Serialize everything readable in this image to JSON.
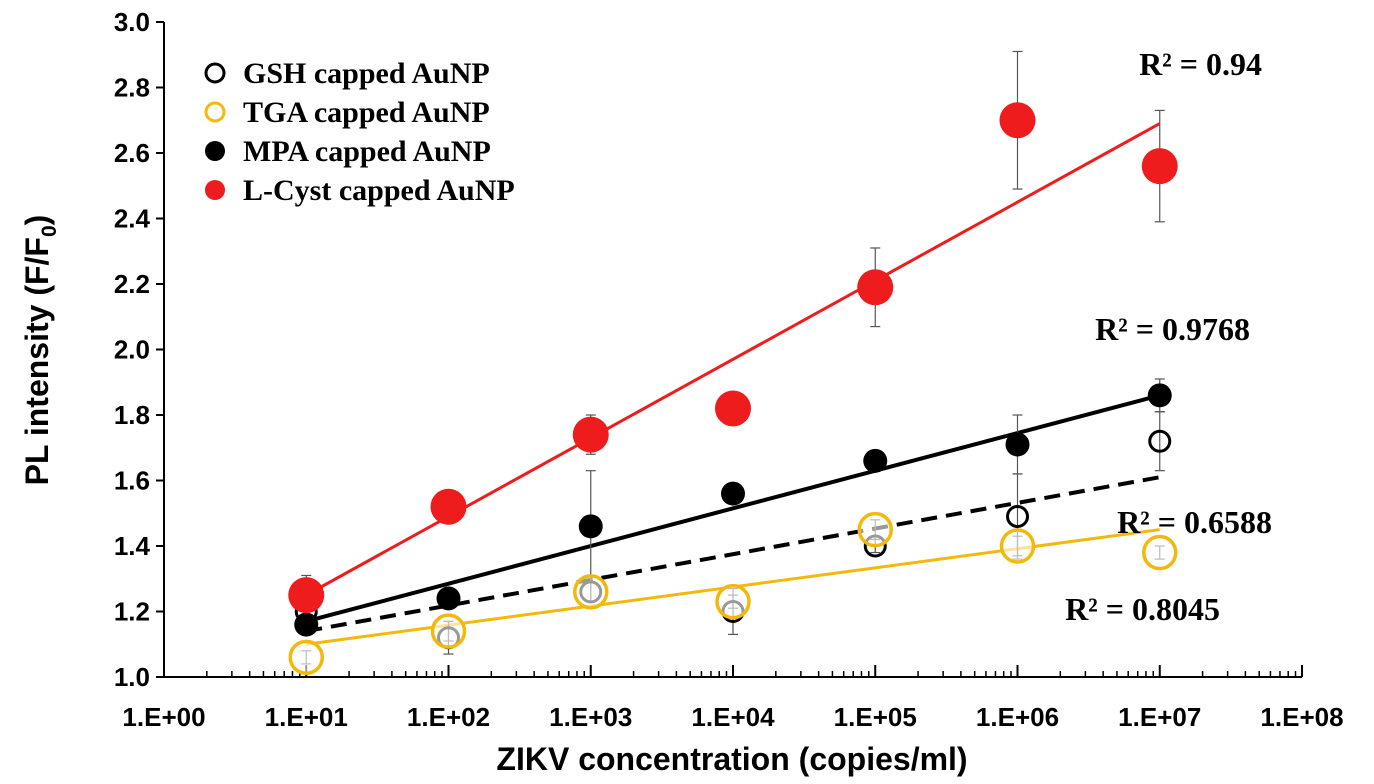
{
  "chart_data": {
    "type": "scatter",
    "x_scale": "log",
    "x_ticks": [
      "1.E+00",
      "1.E+01",
      "1.E+02",
      "1.E+03",
      "1.E+04",
      "1.E+05",
      "1.E+06",
      "1.E+07",
      "1.E+08"
    ],
    "xlim": [
      1,
      100000000
    ],
    "y_ticks": [
      "1.0",
      "1.2",
      "1.4",
      "1.6",
      "1.8",
      "2.0",
      "2.2",
      "2.4",
      "2.6",
      "2.8",
      "3.0"
    ],
    "ylim": [
      1.0,
      3.0
    ],
    "xlabel": "ZIKV concentration (copies/ml)",
    "ylabel": "PL intensity (F/F",
    "ylabel_sub": "0",
    "ylabel_end": ")",
    "grid": false,
    "legend_position": "top-left",
    "series": [
      {
        "name": "GSH capped AuNP",
        "marker": "open-circle",
        "color": "#000000",
        "x": [
          10,
          100,
          1000,
          10000,
          100000,
          1000000,
          10000000
        ],
        "y": [
          1.2,
          1.12,
          1.26,
          1.2,
          1.4,
          1.49,
          1.72
        ],
        "err": [
          0.03,
          0.05,
          0.03,
          0.07,
          0.02,
          0.13,
          0.09
        ],
        "trend": {
          "style": "dashed",
          "y_start": 1.14,
          "y_end": 1.61
        },
        "r2": "R² = 0.6588"
      },
      {
        "name": "TGA capped AuNP",
        "marker": "open-circle",
        "color": "#f2b90c",
        "x": [
          10,
          100,
          1000,
          10000,
          100000,
          1000000,
          10000000
        ],
        "y": [
          1.06,
          1.14,
          1.26,
          1.23,
          1.45,
          1.4,
          1.38
        ],
        "err": [
          0.02,
          0.03,
          0.03,
          0.02,
          0.03,
          0.03,
          0.02
        ],
        "trend": {
          "style": "solid",
          "y_start": 1.1,
          "y_end": 1.45
        },
        "r2": "R² = 0.8045"
      },
      {
        "name": "MPA capped AuNP",
        "marker": "filled-circle",
        "color": "#000000",
        "x": [
          10,
          100,
          1000,
          10000,
          100000,
          1000000,
          10000000
        ],
        "y": [
          1.16,
          1.24,
          1.46,
          1.56,
          1.66,
          1.71,
          1.86
        ],
        "err": [
          0.03,
          0.03,
          0.17,
          0.03,
          0.03,
          0.09,
          0.05
        ],
        "trend": {
          "style": "solid",
          "y_start": 1.17,
          "y_end": 1.86
        },
        "r2": "R² = 0.9768"
      },
      {
        "name": "L-Cyst capped AuNP",
        "marker": "filled-circle",
        "color": "#ee1c1c",
        "x": [
          10,
          100,
          1000,
          10000,
          100000,
          1000000,
          10000000
        ],
        "y": [
          1.25,
          1.52,
          1.74,
          1.82,
          2.19,
          2.7,
          2.56
        ],
        "err": [
          0.06,
          0.04,
          0.06,
          0.03,
          0.12,
          0.21,
          0.17
        ],
        "trend": {
          "style": "solid",
          "y_start": 1.25,
          "y_end": 2.69
        },
        "r2": "R² = 0.94"
      }
    ]
  }
}
